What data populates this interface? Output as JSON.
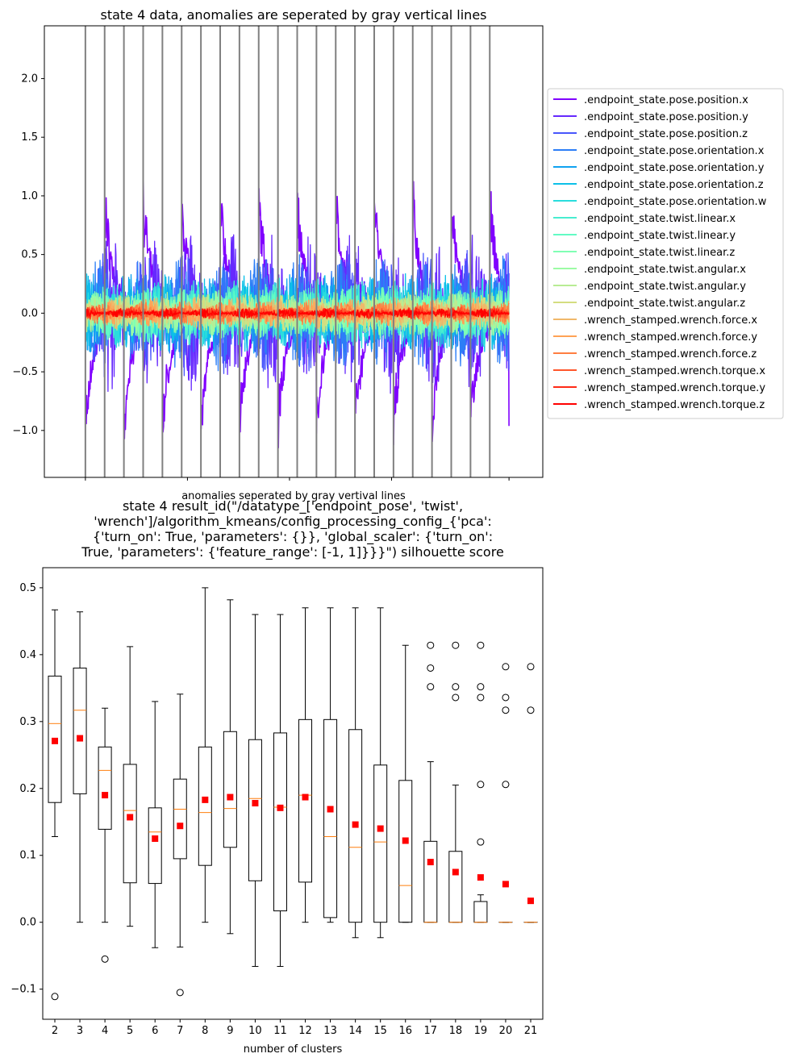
{
  "chart_data": [
    {
      "type": "line",
      "title": "state 4 data, anomalies are seperated by gray vertical lines",
      "xlabel": "anomalies seperated by gray vertival lines",
      "ylabel": "",
      "ylim": [
        -1.4,
        2.45
      ],
      "yticks": [
        "−1.0",
        "−0.5",
        "0.0",
        "0.5",
        "1.0",
        "1.5",
        "2.0"
      ],
      "ytick_values": [
        -1.0,
        -0.5,
        0.0,
        0.5,
        1.0,
        1.5,
        2.0
      ],
      "xlim": [
        0,
        24
      ],
      "anomaly_boundaries": [
        1,
        2,
        3,
        4,
        5,
        6,
        7,
        8,
        9,
        10,
        11,
        12,
        13,
        14,
        15,
        16,
        17,
        18,
        19,
        20,
        21,
        22
      ],
      "legend_placement": "outside-right",
      "series": [
        {
          "name": ".endpoint_state.pose.position.x",
          "color": "#8000ff",
          "amp": 0.85,
          "base": 0.0
        },
        {
          "name": ".endpoint_state.pose.position.y",
          "color": "#6629fe",
          "amp": 0.7,
          "base": 0.0
        },
        {
          "name": ".endpoint_state.pose.position.z",
          "color": "#4856fc",
          "amp": 0.55,
          "base": 0.0
        },
        {
          "name": ".endpoint_state.pose.orientation.x",
          "color": "#2c7ef7",
          "amp": 0.5,
          "base": 0.0
        },
        {
          "name": ".endpoint_state.pose.orientation.y",
          "color": "#10a2f0",
          "amp": 0.35,
          "base": 0.0
        },
        {
          "name": ".endpoint_state.pose.orientation.z",
          "color": "#0cc0e8",
          "amp": 0.35,
          "base": 0.0
        },
        {
          "name": ".endpoint_state.pose.orientation.w",
          "color": "#2adddd",
          "amp": 0.3,
          "base": 0.0
        },
        {
          "name": ".endpoint_state.twist.linear.x",
          "color": "#48edd0",
          "amp": 0.28,
          "base": 0.0
        },
        {
          "name": ".endpoint_state.twist.linear.y",
          "color": "#62fbc4",
          "amp": 0.25,
          "base": 0.0
        },
        {
          "name": ".endpoint_state.twist.linear.z",
          "color": "#80ffb4",
          "amp": 0.22,
          "base": 0.0
        },
        {
          "name": ".endpoint_state.twist.angular.x",
          "color": "#9cfba4",
          "amp": 0.2,
          "base": 0.0
        },
        {
          "name": ".endpoint_state.twist.angular.y",
          "color": "#b8ec94",
          "amp": 0.18,
          "base": 0.0
        },
        {
          "name": ".endpoint_state.twist.angular.z",
          "color": "#d4dd80",
          "amp": 0.16,
          "base": 0.0
        },
        {
          "name": ".wrench_stamped.wrench.force.x",
          "color": "#f0b86a",
          "amp": 0.14,
          "base": 0.0
        },
        {
          "name": ".wrench_stamped.wrench.force.y",
          "color": "#ffa256",
          "amp": 0.12,
          "base": 0.0
        },
        {
          "name": ".wrench_stamped.wrench.force.z",
          "color": "#ff7e41",
          "amp": 0.1,
          "base": 0.0
        },
        {
          "name": ".wrench_stamped.wrench.torque.x",
          "color": "#ff562c",
          "amp": 0.06,
          "base": 0.0
        },
        {
          "name": ".wrench_stamped.wrench.torque.y",
          "color": "#ff2a16",
          "amp": 0.05,
          "base": 0.0
        },
        {
          "name": ".wrench_stamped.wrench.torque.z",
          "color": "#ff0000",
          "amp": 0.04,
          "base": 0.0
        }
      ]
    },
    {
      "type": "box",
      "title_lines": [
        "state 4 result_id(\"/datatype_['endpoint_pose', 'twist',",
        "'wrench']/algorithm_kmeans/config_processing_config_{'pca':",
        "{'turn_on': True, 'parameters': {}}, 'global_scaler': {'turn_on':",
        "True, 'parameters': {'feature_range': [-1, 1]}}}\") silhouette score"
      ],
      "xlabel": "number of clusters",
      "ylabel": "",
      "ylim": [
        -0.145,
        0.53
      ],
      "yticks": [
        "−0.1",
        "0.0",
        "0.1",
        "0.2",
        "0.3",
        "0.4",
        "0.5"
      ],
      "ytick_values": [
        -0.1,
        0.0,
        0.1,
        0.2,
        0.3,
        0.4,
        0.5
      ],
      "categories": [
        "2",
        "3",
        "4",
        "5",
        "6",
        "7",
        "8",
        "9",
        "10",
        "11",
        "12",
        "13",
        "14",
        "15",
        "16",
        "17",
        "18",
        "19",
        "20",
        "21"
      ],
      "boxes": [
        {
          "k": "2",
          "whislo": 0.128,
          "q1": 0.179,
          "med": 0.297,
          "q3": 0.368,
          "whishi": 0.467,
          "mean": 0.271,
          "fliers": [
            -0.111
          ]
        },
        {
          "k": "3",
          "whislo": 0.0,
          "q1": 0.192,
          "med": 0.317,
          "q3": 0.38,
          "whishi": 0.464,
          "mean": 0.275,
          "fliers": []
        },
        {
          "k": "4",
          "whislo": 0.0,
          "q1": 0.139,
          "med": 0.227,
          "q3": 0.262,
          "whishi": 0.32,
          "mean": 0.19,
          "fliers": [
            -0.055
          ]
        },
        {
          "k": "5",
          "whislo": -0.006,
          "q1": 0.059,
          "med": 0.167,
          "q3": 0.236,
          "whishi": 0.412,
          "mean": 0.157,
          "fliers": []
        },
        {
          "k": "6",
          "whislo": -0.038,
          "q1": 0.058,
          "med": 0.135,
          "q3": 0.171,
          "whishi": 0.33,
          "mean": 0.125,
          "fliers": []
        },
        {
          "k": "7",
          "whislo": -0.037,
          "q1": 0.095,
          "med": 0.169,
          "q3": 0.214,
          "whishi": 0.341,
          "mean": 0.144,
          "fliers": [
            -0.105
          ]
        },
        {
          "k": "8",
          "whislo": 0.0,
          "q1": 0.085,
          "med": 0.164,
          "q3": 0.262,
          "whishi": 0.5,
          "mean": 0.183,
          "fliers": []
        },
        {
          "k": "9",
          "whislo": -0.017,
          "q1": 0.112,
          "med": 0.17,
          "q3": 0.285,
          "whishi": 0.482,
          "mean": 0.187,
          "fliers": []
        },
        {
          "k": "10",
          "whislo": -0.066,
          "q1": 0.062,
          "med": 0.185,
          "q3": 0.273,
          "whishi": 0.46,
          "mean": 0.178,
          "fliers": []
        },
        {
          "k": "11",
          "whislo": -0.066,
          "q1": 0.017,
          "med": 0.172,
          "q3": 0.283,
          "whishi": 0.46,
          "mean": 0.171,
          "fliers": []
        },
        {
          "k": "12",
          "whislo": 0.0,
          "q1": 0.06,
          "med": 0.19,
          "q3": 0.303,
          "whishi": 0.47,
          "mean": 0.187,
          "fliers": []
        },
        {
          "k": "13",
          "whislo": 0.0,
          "q1": 0.007,
          "med": 0.128,
          "q3": 0.303,
          "whishi": 0.47,
          "mean": 0.169,
          "fliers": []
        },
        {
          "k": "14",
          "whislo": -0.023,
          "q1": 0.0,
          "med": 0.112,
          "q3": 0.288,
          "whishi": 0.47,
          "mean": 0.146,
          "fliers": []
        },
        {
          "k": "15",
          "whislo": -0.023,
          "q1": 0.0,
          "med": 0.12,
          "q3": 0.235,
          "whishi": 0.47,
          "mean": 0.14,
          "fliers": []
        },
        {
          "k": "16",
          "whislo": 0.0,
          "q1": 0.0,
          "med": 0.055,
          "q3": 0.212,
          "whishi": 0.414,
          "mean": 0.122,
          "fliers": []
        },
        {
          "k": "17",
          "whislo": 0.0,
          "q1": 0.0,
          "med": 0.0,
          "q3": 0.121,
          "whishi": 0.24,
          "mean": 0.09,
          "fliers": [
            0.352,
            0.38,
            0.414
          ]
        },
        {
          "k": "18",
          "whislo": 0.0,
          "q1": 0.0,
          "med": 0.0,
          "q3": 0.106,
          "whishi": 0.205,
          "mean": 0.075,
          "fliers": [
            0.336,
            0.352,
            0.414
          ]
        },
        {
          "k": "19",
          "whislo": 0.0,
          "q1": 0.0,
          "med": 0.0,
          "q3": 0.031,
          "whishi": 0.041,
          "mean": 0.067,
          "fliers": [
            0.12,
            0.206,
            0.336,
            0.352,
            0.414
          ]
        },
        {
          "k": "20",
          "whislo": 0.0,
          "q1": 0.0,
          "med": 0.0,
          "q3": 0.0,
          "whishi": 0.0,
          "mean": 0.057,
          "fliers": [
            0.206,
            0.317,
            0.336,
            0.382
          ]
        },
        {
          "k": "21",
          "whislo": 0.0,
          "q1": 0.0,
          "med": 0.0,
          "q3": 0.0,
          "whishi": 0.0,
          "mean": 0.032,
          "fliers": [
            0.317,
            0.382
          ]
        }
      ],
      "colors": {
        "box": "#000000",
        "median": "#ff7f0e",
        "mean": "#ff0000",
        "flier": "#000000"
      }
    }
  ]
}
